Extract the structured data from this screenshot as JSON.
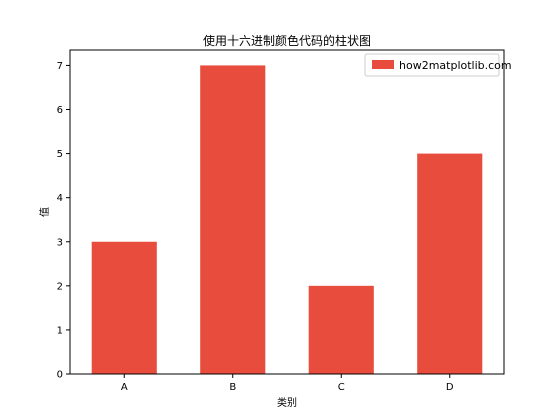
{
  "chart_data": {
    "type": "bar",
    "title": "使用十六进制颜色代码的柱状图",
    "xlabel": "类别",
    "ylabel": "值",
    "categories": [
      "A",
      "B",
      "C",
      "D"
    ],
    "series": [
      {
        "name": "how2matplotlib.com",
        "values": [
          3,
          7,
          2,
          5
        ]
      }
    ],
    "ylim": [
      0,
      7.35
    ],
    "yticks": [
      0,
      1,
      2,
      3,
      4,
      5,
      6,
      7
    ],
    "bar_color": "#E74C3C",
    "grid": false,
    "legend_position": "top-right"
  }
}
